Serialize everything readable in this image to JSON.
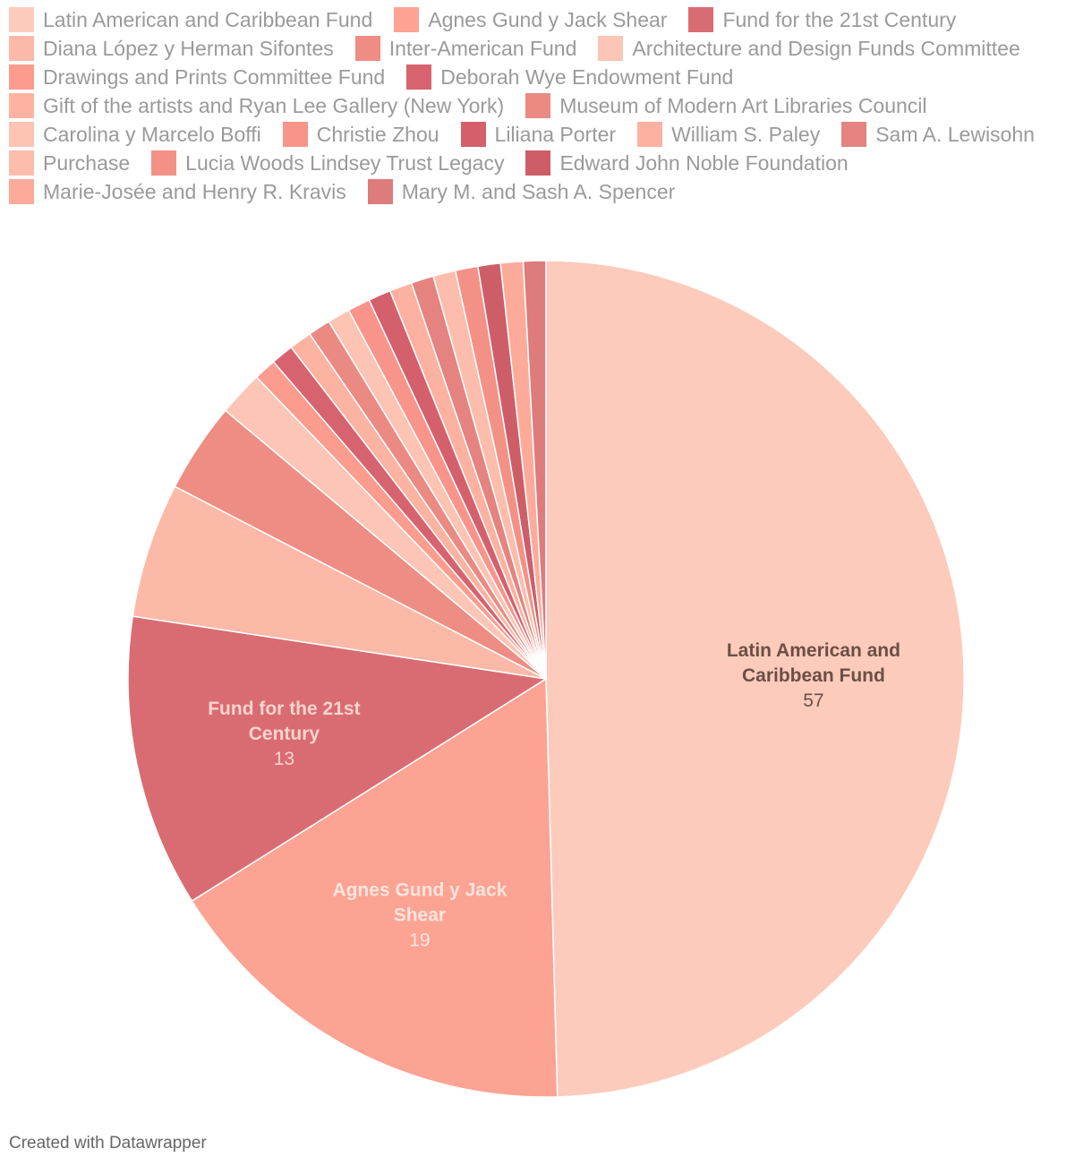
{
  "chart_data": {
    "type": "pie",
    "title": "",
    "legend_position": "top",
    "slices": [
      {
        "label": "Latin American and Caribbean Fund",
        "value": 57,
        "color": "#fdcbbb"
      },
      {
        "label": "Agnes Gund y Jack Shear",
        "value": 19,
        "color": "#fca394"
      },
      {
        "label": "Fund for the 21st Century",
        "value": 13,
        "color": "#d96c72"
      },
      {
        "label": "Diana López y Herman Sifontes",
        "value": 6,
        "color": "#fdb9a8"
      },
      {
        "label": "Inter-American Fund",
        "value": 4,
        "color": "#ee8d83"
      },
      {
        "label": "Architecture and Design Funds Committee",
        "value": 2,
        "color": "#fdc5b5"
      },
      {
        "label": "Drawings and Prints Committee Fund",
        "value": 1,
        "color": "#fb9c8e"
      },
      {
        "label": "Deborah Wye Endowment Fund",
        "value": 1,
        "color": "#d6636e"
      },
      {
        "label": "Gift of the artists and Ryan Lee Gallery (New York)",
        "value": 1,
        "color": "#fdb3a2"
      },
      {
        "label": "Museum of Modern Art Libraries Council",
        "value": 1,
        "color": "#ea8a82"
      },
      {
        "label": "Carolina y Marcelo Boffi",
        "value": 1,
        "color": "#fdc3b3"
      },
      {
        "label": "Christie Zhou",
        "value": 1,
        "color": "#f9948a"
      },
      {
        "label": "Liliana Porter",
        "value": 1,
        "color": "#d4606b"
      },
      {
        "label": "William S. Paley",
        "value": 1,
        "color": "#fdb1a0"
      },
      {
        "label": "Sam A. Lewisohn",
        "value": 1,
        "color": "#e4837f"
      },
      {
        "label": "Purchase",
        "value": 1,
        "color": "#fdbdac"
      },
      {
        "label": "Lucia Woods Lindsey Trust Legacy",
        "value": 1,
        "color": "#f39186"
      },
      {
        "label": "Edward John Noble Foundation",
        "value": 1,
        "color": "#cd5e68"
      },
      {
        "label": "Marie-Josée and Henry R. Kravis",
        "value": 1,
        "color": "#fcab9a"
      },
      {
        "label": "Mary M. and Sash A. Spencer",
        "value": 1,
        "color": "#de7b7b"
      }
    ],
    "data_labels": [
      {
        "index": 0,
        "name": "Latin American and Caribbean Fund",
        "lines": [
          "Latin American and",
          "Caribbean Fund"
        ],
        "value": "57",
        "color": "#6b4f45"
      },
      {
        "index": 1,
        "name": "Agnes Gund y Jack Shear",
        "lines": [
          "Agnes Gund y Jack",
          "Shear"
        ],
        "value": "19",
        "color": "#fde5dc"
      },
      {
        "index": 2,
        "name": "Fund for the 21st Century",
        "lines": [
          "Fund for the 21st",
          "Century"
        ],
        "value": "13",
        "color": "#fad4cc"
      }
    ]
  },
  "footer": {
    "credit": "Created with Datawrapper"
  }
}
